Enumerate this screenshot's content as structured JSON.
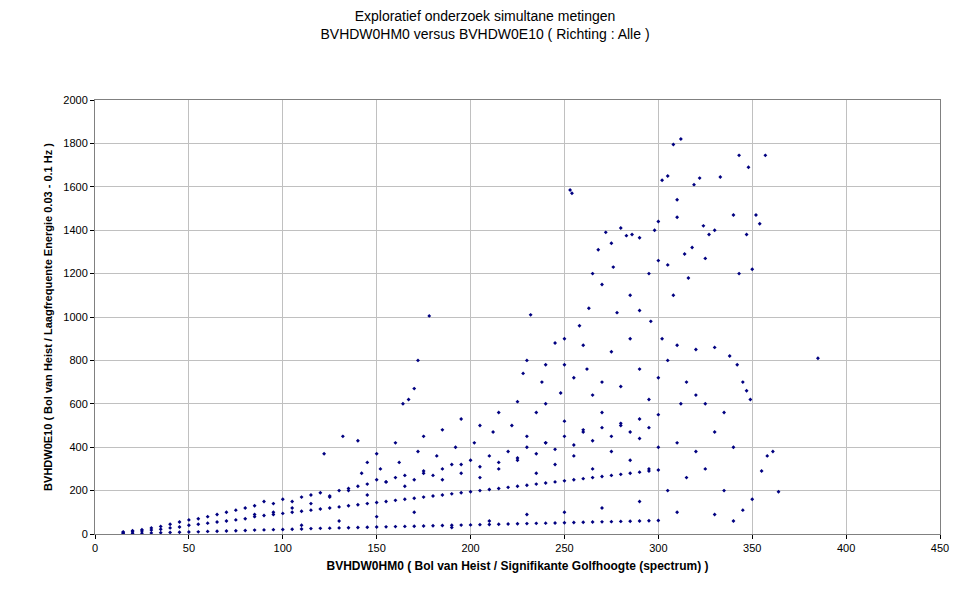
{
  "chart_data": {
    "type": "scatter",
    "title": "Exploratief onderzoek simultane metingen",
    "subtitle": "BVHDW0HM0 versus BVHDW0E10 ( Richting : Alle )",
    "x_label": "BVHDW0HM0 ( Bol van Heist / Signifikante Golfhoogte (spectrum) )",
    "y_label": "BVHDW0E10 ( Bol van Heist / Laagfrequente Energie 0.03 - 0.1 Hz )",
    "color": "#000080",
    "marker": "diamond",
    "grid": true,
    "xlim": [
      0,
      450
    ],
    "xticks": [
      0,
      50,
      100,
      150,
      200,
      250,
      300,
      350,
      400,
      450
    ],
    "ylim": [
      0,
      2000
    ],
    "yticks": [
      0,
      200,
      400,
      600,
      800,
      1000,
      1200,
      1400,
      1600,
      1800,
      2000
    ],
    "x": [
      15,
      15,
      15,
      20,
      20,
      20,
      25,
      25,
      25,
      30,
      30,
      30,
      35,
      35,
      35,
      40,
      40,
      40,
      45,
      45,
      45,
      50,
      50,
      50,
      55,
      55,
      55,
      60,
      60,
      60,
      65,
      65,
      65,
      70,
      70,
      70,
      75,
      75,
      75,
      80,
      80,
      80,
      85,
      85,
      85,
      90,
      90,
      90,
      95,
      95,
      95,
      100,
      100,
      100,
      105,
      105,
      105,
      110,
      110,
      110,
      115,
      115,
      115,
      120,
      120,
      120,
      125,
      125,
      125,
      130,
      130,
      130,
      135,
      135,
      135,
      140,
      140,
      140,
      145,
      145,
      145,
      150,
      150,
      150,
      155,
      155,
      155,
      160,
      160,
      160,
      165,
      165,
      165,
      170,
      170,
      170,
      175,
      175,
      175,
      180,
      180,
      180,
      185,
      185,
      185,
      190,
      190,
      190,
      195,
      195,
      195,
      200,
      200,
      200,
      205,
      205,
      205,
      210,
      210,
      210,
      215,
      215,
      215,
      220,
      220,
      220,
      225,
      225,
      225,
      230,
      230,
      230,
      235,
      235,
      235,
      240,
      240,
      240,
      245,
      245,
      245,
      250,
      250,
      250,
      255,
      255,
      255,
      260,
      260,
      260,
      265,
      265,
      265,
      270,
      270,
      270,
      275,
      275,
      275,
      280,
      280,
      280,
      285,
      285,
      285,
      290,
      290,
      290,
      295,
      295,
      295,
      300,
      300,
      300,
      312,
      308,
      357,
      343,
      253,
      254,
      348,
      322,
      302,
      305,
      319,
      333,
      280,
      283,
      286,
      290,
      310,
      300,
      298,
      324,
      330,
      340,
      352,
      354,
      347,
      310,
      350,
      343,
      318,
      272,
      275,
      268,
      265,
      270,
      276,
      385,
      178,
      232,
      172,
      170,
      167,
      164,
      140,
      132,
      364,
      358,
      361,
      355,
      347,
      349,
      300,
      305,
      316,
      325,
      327,
      314,
      308,
      295,
      285,
      263,
      258,
      250,
      245,
      240,
      230,
      228,
      260,
      278,
      290,
      296,
      302,
      310,
      320,
      330,
      338,
      342,
      345,
      320,
      312,
      300,
      290,
      280,
      270,
      262,
      255,
      248,
      240,
      235,
      225,
      215,
      205,
      195,
      185,
      175,
      160,
      150,
      145,
      122,
      230,
      240,
      250,
      260,
      270,
      280,
      290,
      300,
      310,
      320,
      330,
      340,
      350,
      345,
      335,
      325,
      315,
      305,
      295,
      285,
      275,
      265,
      255,
      245,
      235,
      225,
      215,
      205,
      195,
      185,
      175,
      165,
      155,
      145,
      135,
      125,
      115,
      105,
      95,
      85,
      110,
      130,
      150,
      170,
      190,
      210,
      230,
      250,
      270,
      290,
      310,
      330,
      340,
      325,
      335,
      315,
      305,
      295,
      285,
      275,
      265,
      250,
      238,
      222,
      212,
      202,
      192,
      182,
      172,
      162,
      152,
      142
    ],
    "values": [
      2,
      6,
      10,
      3,
      10,
      15,
      4,
      14,
      20,
      5,
      18,
      28,
      6,
      22,
      35,
      7,
      28,
      45,
      8,
      32,
      55,
      9,
      40,
      65,
      10,
      45,
      70,
      12,
      50,
      80,
      13,
      55,
      90,
      14,
      60,
      100,
      15,
      65,
      110,
      16,
      70,
      120,
      18,
      80,
      130,
      19,
      85,
      150,
      20,
      90,
      140,
      21,
      95,
      160,
      22,
      100,
      150,
      23,
      105,
      170,
      25,
      110,
      180,
      26,
      115,
      190,
      27,
      120,
      175,
      28,
      125,
      200,
      29,
      130,
      210,
      30,
      135,
      220,
      31,
      140,
      230,
      32,
      145,
      250,
      33,
      150,
      240,
      34,
      155,
      260,
      35,
      160,
      270,
      36,
      165,
      250,
      37,
      170,
      290,
      38,
      175,
      270,
      39,
      180,
      300,
      40,
      185,
      320,
      41,
      190,
      280,
      42,
      195,
      340,
      43,
      200,
      310,
      44,
      205,
      360,
      45,
      210,
      330,
      46,
      215,
      380,
      47,
      220,
      350,
      48,
      225,
      400,
      49,
      230,
      370,
      50,
      235,
      420,
      51,
      240,
      390,
      52,
      245,
      450,
      53,
      250,
      410,
      54,
      255,
      470,
      55,
      260,
      430,
      56,
      265,
      490,
      57,
      270,
      450,
      58,
      275,
      510,
      59,
      280,
      470,
      60,
      285,
      530,
      61,
      290,
      490,
      62,
      295,
      550,
      1820,
      1795,
      1745,
      1745,
      1585,
      1570,
      1690,
      1640,
      1630,
      1650,
      1610,
      1645,
      1410,
      1375,
      1380,
      1365,
      1540,
      1440,
      1400,
      1420,
      1400,
      1470,
      1470,
      1430,
      1380,
      1460,
      1220,
      1200,
      1320,
      1390,
      1340,
      1310,
      1200,
      1150,
      1230,
      810,
      1005,
      1010,
      800,
      670,
      620,
      600,
      430,
      450,
      195,
      360,
      380,
      290,
      660,
      620,
      1260,
      1240,
      1180,
      1270,
      1380,
      1290,
      1100,
      1200,
      1100,
      1040,
      960,
      900,
      880,
      780,
      800,
      740,
      870,
      1020,
      1030,
      980,
      900,
      870,
      850,
      860,
      820,
      780,
      700,
      640,
      600,
      720,
      760,
      680,
      700,
      760,
      720,
      650,
      600,
      560,
      610,
      560,
      500,
      530,
      480,
      450,
      420,
      370,
      330,
      370,
      450,
      420,
      520,
      480,
      560,
      500,
      440,
      400,
      420,
      380,
      470,
      400,
      160,
      110,
      200,
      300,
      260,
      200,
      300,
      340,
      380,
      300,
      360,
      320,
      280,
      340,
      300,
      260,
      320,
      250,
      280,
      220,
      240,
      180,
      200,
      170,
      140,
      120,
      100,
      90,
      40,
      60,
      80,
      100,
      30,
      60,
      90,
      100,
      120,
      150,
      100,
      90,
      60,
      600,
      560,
      700,
      800,
      620,
      900,
      840,
      640,
      780,
      700,
      500,
      470,
      420,
      400,
      360,
      380,
      330,
      300,
      280
    ]
  }
}
